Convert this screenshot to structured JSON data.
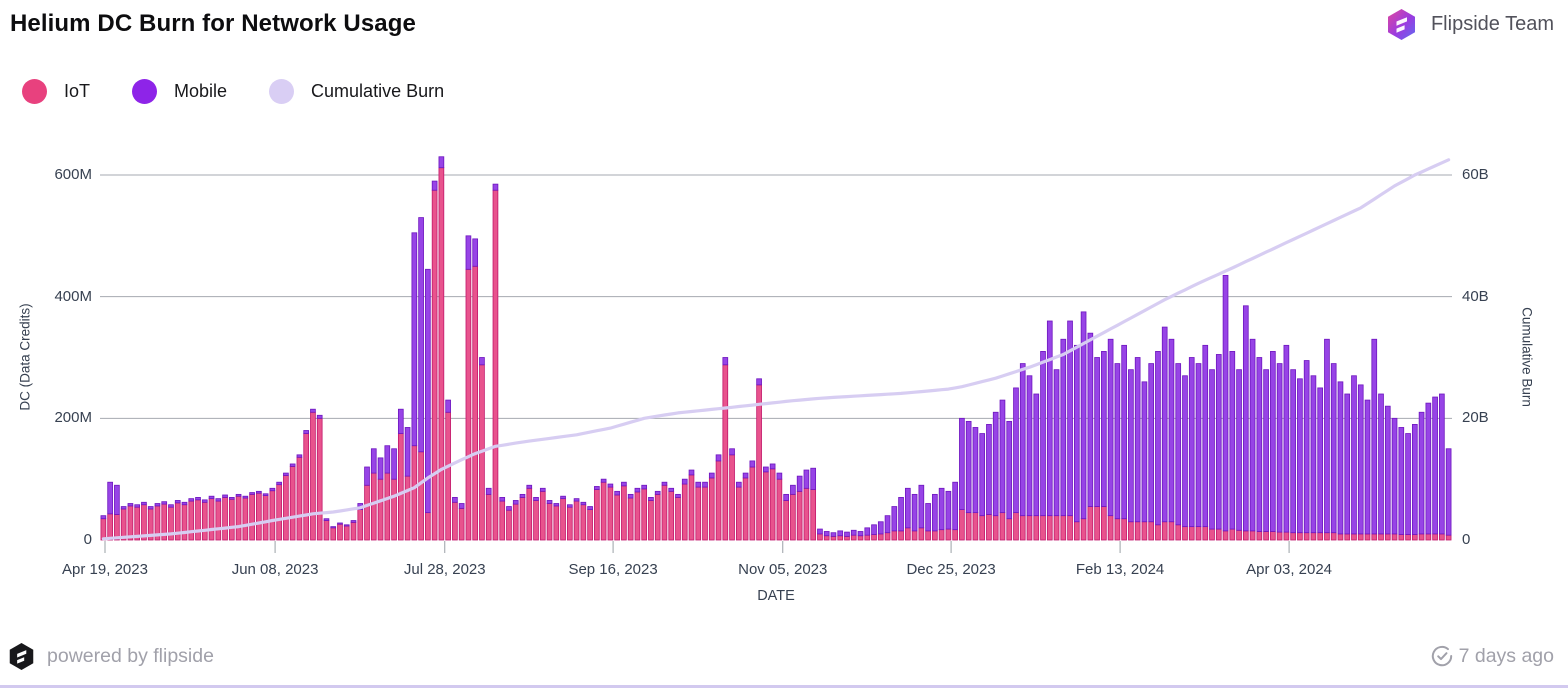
{
  "header": {
    "title": "Helium DC Burn for Network Usage",
    "team": "Flipside Team"
  },
  "legend": [
    {
      "label": "IoT",
      "color": "#e8417e"
    },
    {
      "label": "Mobile",
      "color": "#8e24e8"
    },
    {
      "label": "Cumulative Burn",
      "color": "#d9cef4"
    }
  ],
  "footer": {
    "powered_by": "powered by flipside",
    "updated": "7 days ago"
  },
  "icons": {
    "header_logo": "flipside-hexagon",
    "footer_logo": "flipside-hexagon-black",
    "updated_icon": "sync-check"
  },
  "chart_data": {
    "type": "bar",
    "stacked": true,
    "title": "Helium DC Burn for Network Usage",
    "xlabel": "DATE",
    "ylabel_left": "DC (Data Credits)",
    "ylabel_right": "Cumulative Burn",
    "grid": true,
    "grid_color": "#a6aab1",
    "legend_position": "top-left",
    "value_unit_left": "millions of DC per day",
    "value_unit_right": "billions (cumulative)",
    "ylim_left_M": [
      0,
      600
    ],
    "ylim_right_B": [
      0,
      60
    ],
    "y_left_ticks": [
      {
        "label": "0",
        "value": 0
      },
      {
        "label": "200M",
        "value": 200
      },
      {
        "label": "400M",
        "value": 400
      },
      {
        "label": "600M",
        "value": 600
      }
    ],
    "y_right_ticks": [
      {
        "label": "0",
        "value": 0
      },
      {
        "label": "20B",
        "value": 20
      },
      {
        "label": "40B",
        "value": 40
      },
      {
        "label": "60B",
        "value": 60
      }
    ],
    "x_ticks": [
      {
        "label": "Apr 19, 2023",
        "pos": 0.24
      },
      {
        "label": "Jun 08, 2023",
        "pos": 25.4
      },
      {
        "label": "Jul 28, 2023",
        "pos": 50.5
      },
      {
        "label": "Sep 16, 2023",
        "pos": 75.4
      },
      {
        "label": "Nov 05, 2023",
        "pos": 100.5
      },
      {
        "label": "Dec 25, 2023",
        "pos": 125.4
      },
      {
        "label": "Feb 13, 2024",
        "pos": 150.4
      },
      {
        "label": "Apr 03, 2024",
        "pos": 175.4
      }
    ],
    "sampling_note": "daily bars downsampled to 200 ~2-day buckets spanning Apr 19 2023 to late May 2024; values in millions of DC",
    "series": [
      {
        "name": "IoT",
        "fill": "#e8538d",
        "stroke": "#c2176b",
        "values": [
          35,
          43,
          42,
          51,
          56,
          54,
          58,
          51,
          56,
          59,
          54,
          61,
          58,
          64,
          66,
          62,
          68,
          64,
          70,
          67,
          72,
          69,
          75,
          77,
          73,
          81,
          91,
          106,
          121,
          136,
          175,
          210,
          200,
          32,
          20,
          26,
          23,
          29,
          50,
          90,
          110,
          100,
          110,
          100,
          175,
          105,
          155,
          145,
          45,
          575,
          612,
          210,
          62,
          52,
          445,
          450,
          288,
          75,
          575,
          64,
          49,
          59,
          70,
          85,
          65,
          80,
          60,
          56,
          68,
          54,
          64,
          58,
          50,
          83,
          95,
          87,
          74,
          89,
          69,
          79,
          84,
          65,
          75,
          90,
          80,
          70,
          92,
          107,
          87,
          87,
          102,
          130,
          288,
          140,
          87,
          102,
          120,
          255,
          112,
          117,
          100,
          65,
          75,
          80,
          85,
          83,
          10,
          7,
          6,
          7,
          6,
          8,
          7,
          8,
          9,
          10,
          12,
          15,
          15,
          20,
          15,
          20,
          15,
          15,
          17,
          18,
          17,
          50,
          45,
          45,
          40,
          42,
          40,
          45,
          35,
          45,
          40,
          40,
          40,
          40,
          40,
          40,
          40,
          40,
          30,
          35,
          55,
          55,
          55,
          40,
          35,
          35,
          30,
          30,
          30,
          30,
          25,
          30,
          30,
          25,
          22,
          22,
          22,
          22,
          18,
          18,
          15,
          18,
          16,
          15,
          15,
          14,
          14,
          14,
          13,
          13,
          12,
          12,
          12,
          12,
          12,
          12,
          12,
          10,
          10,
          10,
          10,
          10,
          10,
          10,
          10,
          10,
          9,
          9,
          9,
          10,
          10,
          10,
          10,
          8
        ]
      },
      {
        "name": "Mobile",
        "fill": "#9744e6",
        "stroke": "#6e16bf",
        "values": [
          5,
          52,
          48,
          4,
          4,
          4,
          4,
          4,
          4,
          4,
          4,
          4,
          4,
          4,
          4,
          4,
          4,
          4,
          4,
          3,
          3,
          3,
          3,
          3,
          3,
          4,
          4,
          4,
          4,
          4,
          5,
          5,
          5,
          3,
          2,
          2,
          2,
          3,
          10,
          30,
          40,
          35,
          45,
          50,
          40,
          80,
          350,
          385,
          400,
          15,
          18,
          20,
          8,
          8,
          55,
          45,
          12,
          10,
          10,
          6,
          6,
          6,
          5,
          5,
          5,
          5,
          5,
          4,
          4,
          4,
          4,
          4,
          5,
          5,
          5,
          5,
          6,
          6,
          6,
          6,
          6,
          5,
          5,
          5,
          5,
          5,
          8,
          8,
          8,
          8,
          8,
          10,
          12,
          10,
          8,
          8,
          10,
          10,
          8,
          8,
          10,
          10,
          15,
          25,
          30,
          35,
          8,
          7,
          6,
          8,
          7,
          8,
          7,
          12,
          16,
          20,
          28,
          40,
          55,
          65,
          60,
          70,
          45,
          60,
          68,
          62,
          78,
          150,
          150,
          140,
          135,
          148,
          170,
          185,
          160,
          205,
          250,
          230,
          200,
          270,
          320,
          240,
          290,
          320,
          290,
          340,
          285,
          245,
          255,
          290,
          255,
          285,
          250,
          270,
          230,
          260,
          285,
          320,
          300,
          265,
          248,
          278,
          268,
          298,
          262,
          287,
          420,
          292,
          264,
          370,
          315,
          286,
          266,
          296,
          277,
          307,
          268,
          253,
          283,
          258,
          238,
          318,
          278,
          250,
          230,
          260,
          245,
          220,
          320,
          230,
          210,
          190,
          176,
          166,
          181,
          200,
          215,
          225,
          230,
          142
        ]
      }
    ],
    "cumulative_burn": {
      "name": "Cumulative Burn",
      "color": "#d7cdf2",
      "unit": "B",
      "keypoints": [
        [
          0,
          0.2
        ],
        [
          10,
          1.0
        ],
        [
          20,
          2.2
        ],
        [
          25,
          3.2
        ],
        [
          31,
          4.3
        ],
        [
          34,
          4.6
        ],
        [
          38,
          5.3
        ],
        [
          43,
          7.2
        ],
        [
          46,
          8.6
        ],
        [
          48,
          10.2
        ],
        [
          50,
          11.6
        ],
        [
          53,
          13.2
        ],
        [
          55,
          14.2
        ],
        [
          58,
          15.4
        ],
        [
          62,
          16.1
        ],
        [
          70,
          17.3
        ],
        [
          75,
          18.4
        ],
        [
          80,
          20.0
        ],
        [
          85,
          20.9
        ],
        [
          92,
          21.7
        ],
        [
          97,
          22.3
        ],
        [
          102,
          22.9
        ],
        [
          106,
          23.3
        ],
        [
          112,
          23.7
        ],
        [
          118,
          24.1
        ],
        [
          125,
          24.8
        ],
        [
          127,
          25.2
        ],
        [
          132,
          26.6
        ],
        [
          137,
          28.4
        ],
        [
          142,
          30.5
        ],
        [
          147,
          33.5
        ],
        [
          152,
          36.5
        ],
        [
          157,
          39.5
        ],
        [
          162,
          42.2
        ],
        [
          166,
          44.2
        ],
        [
          171,
          46.8
        ],
        [
          176,
          49.4
        ],
        [
          181,
          52.0
        ],
        [
          186,
          54.6
        ],
        [
          191,
          58.2
        ],
        [
          194,
          60.0
        ],
        [
          199,
          62.5
        ]
      ]
    }
  }
}
